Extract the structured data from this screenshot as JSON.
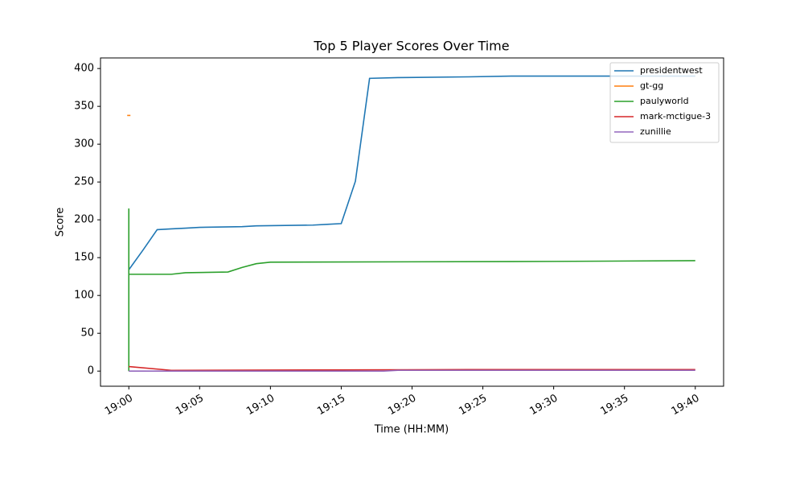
{
  "chart_data": {
    "type": "line",
    "title": "Top 5 Player Scores Over Time",
    "xlabel": "Time (HH:MM)",
    "ylabel": "Score",
    "xlim": [
      "18:58",
      "19:42"
    ],
    "xticks": [
      "19:00",
      "19:05",
      "19:10",
      "19:15",
      "19:20",
      "19:25",
      "19:30",
      "19:35",
      "19:40"
    ],
    "ylim": [
      -20,
      414
    ],
    "yticks": [
      0,
      50,
      100,
      150,
      200,
      250,
      300,
      350,
      400
    ],
    "legend": "upper right",
    "series": [
      {
        "name": "presidentwest",
        "color": "#1f77b4",
        "x": [
          "19:00",
          "19:01",
          "19:02",
          "19:03",
          "19:04",
          "19:05",
          "19:08",
          "19:09",
          "19:13",
          "19:14",
          "19:15",
          "19:16",
          "19:17",
          "19:19",
          "19:24",
          "19:27",
          "19:40"
        ],
        "values": [
          134,
          160,
          187,
          188,
          189,
          190,
          191,
          192,
          193,
          194,
          195,
          251,
          387,
          388,
          389,
          390,
          390
        ]
      },
      {
        "name": "gt-gg",
        "color": "#ff7f0e",
        "x": [
          "19:00"
        ],
        "values": [
          338
        ]
      },
      {
        "name": "paulyworld",
        "color": "#2ca02c",
        "x": [
          "19:00",
          "19:00",
          "19:00",
          "19:03",
          "19:04",
          "19:07",
          "19:08",
          "19:09",
          "19:10",
          "19:30",
          "19:40"
        ],
        "values": [
          215,
          0,
          128,
          128,
          130,
          131,
          137,
          142,
          144,
          145,
          146
        ]
      },
      {
        "name": "mark-mctigue-3",
        "color": "#d62728",
        "x": [
          "19:00",
          "19:03",
          "19:24",
          "19:40"
        ],
        "values": [
          6,
          1,
          2,
          2
        ]
      },
      {
        "name": "zunillie",
        "color": "#9467bd",
        "x": [
          "19:00",
          "19:18",
          "19:19",
          "19:40"
        ],
        "values": [
          0,
          0,
          1,
          1
        ]
      }
    ]
  }
}
